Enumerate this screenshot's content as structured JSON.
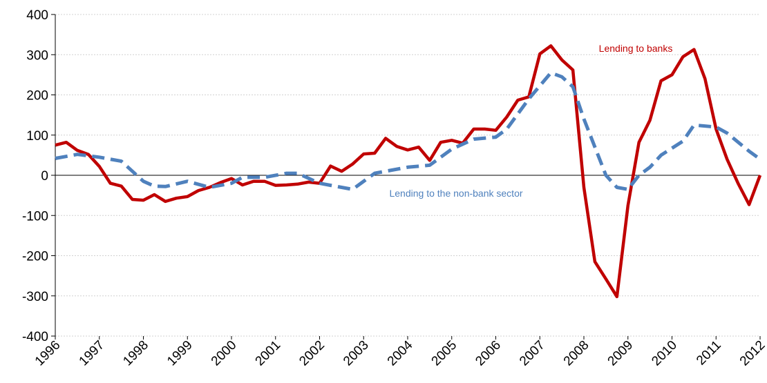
{
  "chart_data": {
    "type": "line",
    "xlim": [
      1996,
      2012
    ],
    "xticks": [
      1996,
      1997,
      1998,
      1999,
      2000,
      2001,
      2002,
      2003,
      2004,
      2005,
      2006,
      2007,
      2008,
      2009,
      2010,
      2011,
      2012
    ],
    "ylim": [
      -400,
      400
    ],
    "yticks": [
      -400,
      -300,
      -200,
      -100,
      0,
      100,
      200,
      300,
      400
    ],
    "grid": true,
    "series": [
      {
        "name": "Lending to banks",
        "color": "#c00000",
        "dashed": false,
        "x": [
          1996,
          1996.25,
          1996.5,
          1996.75,
          1997,
          1997.25,
          1997.5,
          1997.75,
          1998,
          1998.25,
          1998.5,
          1998.75,
          1999,
          1999.25,
          1999.5,
          1999.75,
          2000,
          2000.25,
          2000.5,
          2000.75,
          2001,
          2001.25,
          2001.5,
          2001.75,
          2002,
          2002.25,
          2002.5,
          2002.75,
          2003,
          2003.25,
          2003.5,
          2003.75,
          2004,
          2004.25,
          2004.5,
          2004.75,
          2005,
          2005.25,
          2005.5,
          2005.75,
          2006,
          2006.25,
          2006.5,
          2006.75,
          2007,
          2007.25,
          2007.5,
          2007.75,
          2008,
          2008.25,
          2008.5,
          2008.75,
          2009,
          2009.25,
          2009.5,
          2009.75,
          2010,
          2010.25,
          2010.5,
          2010.75,
          2011,
          2011.25,
          2011.5,
          2011.75,
          2012
        ],
        "values": [
          75,
          82,
          62,
          52,
          22,
          -20,
          -27,
          -60,
          -62,
          -48,
          -65,
          -57,
          -53,
          -38,
          -30,
          -18,
          -8,
          -24,
          -15,
          -15,
          -25,
          -24,
          -22,
          -17,
          -20,
          23,
          10,
          28,
          53,
          55,
          92,
          72,
          63,
          70,
          37,
          82,
          87,
          80,
          115,
          115,
          112,
          145,
          187,
          195,
          302,
          322,
          287,
          262,
          -30,
          -215,
          -258,
          -302,
          -75,
          82,
          137,
          235,
          250,
          295,
          313,
          240,
          115,
          40,
          -20,
          -73,
          0
        ]
      },
      {
        "name": "Lending to the non-bank sector",
        "color": "#4f81bd",
        "dashed": true,
        "x": [
          1996,
          1996.5,
          1997,
          1997.5,
          1997.75,
          1998,
          1998.25,
          1998.5,
          1999,
          1999.5,
          2000,
          2000.25,
          2000.75,
          2001.25,
          2001.5,
          2002,
          2002.5,
          2002.75,
          2003,
          2003.25,
          2004,
          2004.5,
          2005,
          2005.5,
          2006,
          2006.25,
          2006.75,
          2007.25,
          2007.5,
          2007.75,
          2008,
          2008.5,
          2008.75,
          2009,
          2009.25,
          2009.5,
          2009.75,
          2010.25,
          2010.5,
          2011,
          2011.25,
          2011.75,
          2012
        ],
        "values": [
          42,
          52,
          45,
          35,
          10,
          -15,
          -27,
          -28,
          -15,
          -30,
          -20,
          -5,
          -5,
          5,
          5,
          -20,
          -30,
          -35,
          -15,
          5,
          20,
          25,
          65,
          90,
          95,
          115,
          190,
          255,
          245,
          220,
          140,
          0,
          -30,
          -35,
          0,
          20,
          50,
          85,
          125,
          120,
          105,
          60,
          40
        ]
      }
    ]
  }
}
